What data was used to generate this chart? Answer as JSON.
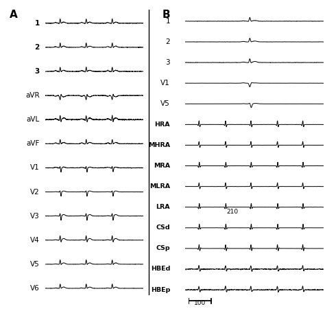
{
  "background_color": "#ffffff",
  "panel_A_label": "A",
  "panel_B_label": "B",
  "panel_A_leads": [
    "1",
    "2",
    "3",
    "aVR",
    "aVL",
    "aVF",
    "V1",
    "V2",
    "V3",
    "V4",
    "V5",
    "V6"
  ],
  "panel_B_leads": [
    "1",
    "2",
    "3",
    "V1",
    "V5",
    "HRA",
    "MHRA",
    "MRA",
    "MLRA",
    "LRA",
    "CSd",
    "CSp",
    "HBEd",
    "HBEp"
  ],
  "annotation_210": "210",
  "scale_bar_label": "100",
  "line_color": "#000000",
  "line_width": 0.7,
  "fig_width": 4.74,
  "fig_height": 4.53,
  "dpi": 100
}
